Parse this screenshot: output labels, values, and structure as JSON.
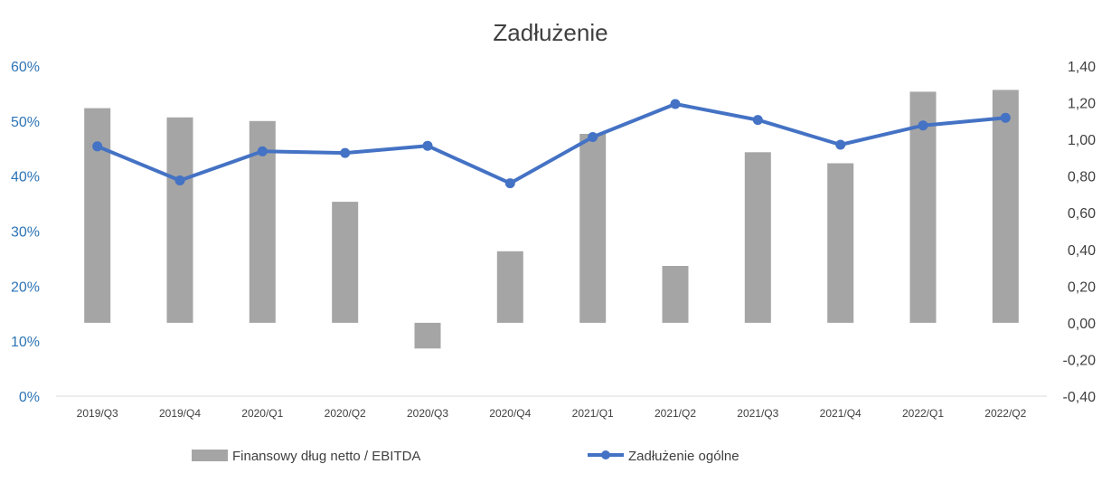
{
  "chart_data": {
    "type": "bar+line",
    "title": "Zadłużenie",
    "categories": [
      "2019/Q3",
      "2019/Q4",
      "2020/Q1",
      "2020/Q2",
      "2020/Q3",
      "2020/Q4",
      "2021/Q1",
      "2021/Q2",
      "2021/Q3",
      "2021/Q4",
      "2022/Q1",
      "2022/Q2"
    ],
    "left_axis": {
      "ticks": [
        "0%",
        "10%",
        "20%",
        "30%",
        "40%",
        "50%",
        "60%"
      ],
      "ylim": [
        0,
        60
      ],
      "color": "#2E75B6"
    },
    "right_axis": {
      "ticks": [
        "-0,40",
        "-0,20",
        "0,00",
        "0,20",
        "0,40",
        "0,60",
        "0,80",
        "1,00",
        "1,20",
        "1,40"
      ],
      "ylim": [
        -0.4,
        1.4
      ]
    },
    "series": [
      {
        "name": "Finansowy dług netto / EBITDA",
        "type": "bar",
        "axis": "right",
        "color": "#A5A5A5",
        "values": [
          1.17,
          1.12,
          1.1,
          0.66,
          -0.14,
          0.39,
          1.03,
          0.31,
          0.93,
          0.87,
          1.26,
          1.27
        ]
      },
      {
        "name": "Zadłużenie ogólne",
        "type": "line",
        "axis": "left",
        "color": "#4472C4",
        "values": [
          45.4,
          39.2,
          44.5,
          44.2,
          45.5,
          38.7,
          47.1,
          53.1,
          50.2,
          45.7,
          49.2,
          50.6
        ]
      }
    ],
    "legend_position": "bottom",
    "grid": false
  }
}
